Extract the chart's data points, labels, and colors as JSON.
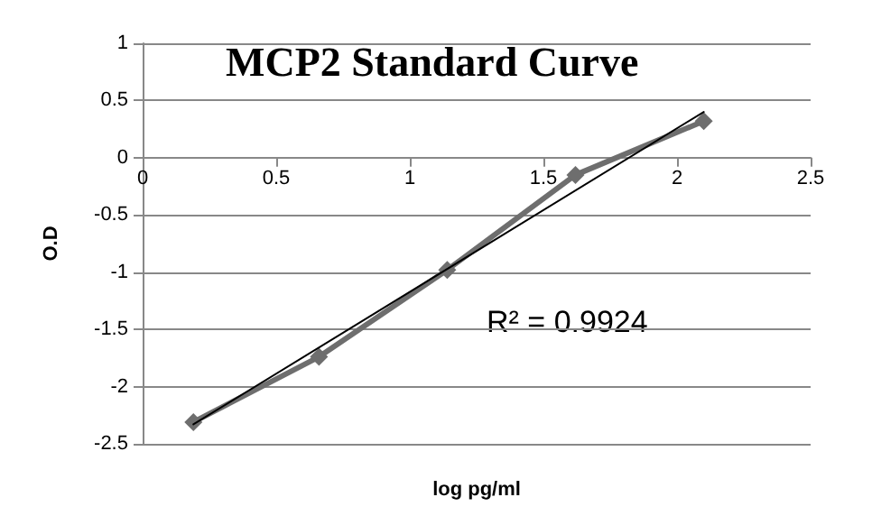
{
  "chart_data": {
    "type": "line",
    "title": "MCP2 Standard Curve",
    "xlabel": "log pg/ml",
    "ylabel": "O.D",
    "x": [
      0.19,
      0.66,
      1.14,
      1.62,
      2.1
    ],
    "series": [
      {
        "color": "#6e6e6e",
        "values": [
          -2.31,
          -1.74,
          -0.98,
          -0.15,
          0.32
        ],
        "marker": "diamond"
      },
      {
        "color": "#000000",
        "x": [
          0.19,
          2.1
        ],
        "values": [
          -2.33,
          0.4
        ],
        "marker": "none"
      }
    ],
    "xlim": [
      0,
      2.5
    ],
    "xticks": [
      0,
      0.5,
      1,
      1.5,
      2,
      2.5
    ],
    "ylim": [
      -2.5,
      1
    ],
    "yticks": [
      -2.5,
      -2,
      -1.5,
      -1,
      -0.5,
      0,
      0.5,
      1
    ],
    "grid": "y",
    "annotations": [
      "R² = 0.9924"
    ]
  }
}
